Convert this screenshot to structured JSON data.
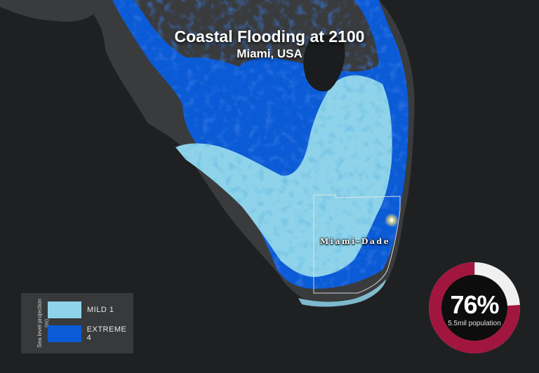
{
  "map": {
    "title": "Coastal Flooding at 2100",
    "subtitle": "Miami, USA",
    "county_label": "Miami-Dade",
    "colors": {
      "background": "#1e2022",
      "land": "#3a3b3c",
      "mild": "#8fd3ea",
      "extreme": "#0b5ad6",
      "county_border": "#e8e8e8",
      "city_marker": "#f5e27a"
    }
  },
  "legend": {
    "title": "Sea level projection (m)",
    "items": [
      {
        "label": "MILD 1",
        "color": "#8fd3ea"
      },
      {
        "label": "EXTREME 4",
        "color": "#0b5ad6"
      }
    ]
  },
  "population_stat": {
    "percent": 76,
    "percent_label": "76%",
    "caption": "5.5mil population",
    "colors": {
      "fill": "#a0163f",
      "remainder": "#f0f0f0",
      "center": "#0d0d0d"
    }
  }
}
